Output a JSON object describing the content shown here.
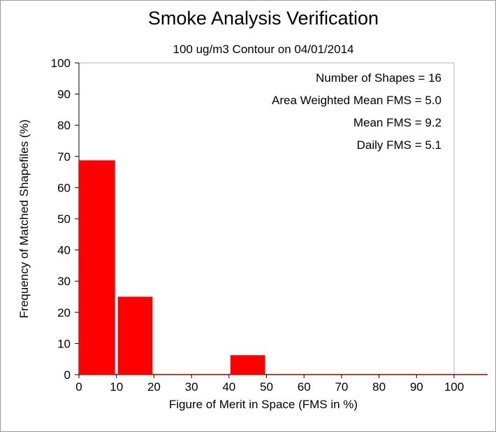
{
  "chart_data": {
    "type": "bar",
    "title": "Smoke Analysis Verification",
    "subtitle": "100 ug/m3 Contour on 04/01/2014",
    "xlabel": "Figure of Merit in Space (FMS in %)",
    "ylabel": "Frequency of Matched Shapefiles (%)",
    "xlim": [
      0,
      100
    ],
    "ylim": [
      0,
      100
    ],
    "xticks": [
      0,
      10,
      20,
      30,
      40,
      50,
      60,
      70,
      80,
      90,
      100
    ],
    "yticks": [
      0,
      10,
      20,
      30,
      40,
      50,
      60,
      70,
      80,
      90,
      100
    ],
    "bins": [
      {
        "start": 0,
        "end": 10,
        "value": 68.75
      },
      {
        "start": 10,
        "end": 20,
        "value": 25.0
      },
      {
        "start": 20,
        "end": 30,
        "value": 0
      },
      {
        "start": 30,
        "end": 40,
        "value": 0
      },
      {
        "start": 40,
        "end": 50,
        "value": 6.25
      },
      {
        "start": 50,
        "end": 60,
        "value": 0
      },
      {
        "start": 60,
        "end": 70,
        "value": 0
      },
      {
        "start": 70,
        "end": 80,
        "value": 0
      },
      {
        "start": 80,
        "end": 90,
        "value": 0
      },
      {
        "start": 90,
        "end": 100,
        "value": 0
      }
    ],
    "bar_color": "#ff0000",
    "grid": false,
    "stats": [
      "Number of Shapes = 16",
      "Area Weighted Mean FMS = 5.0",
      "Mean FMS = 9.2",
      "Daily FMS = 5.1"
    ]
  }
}
